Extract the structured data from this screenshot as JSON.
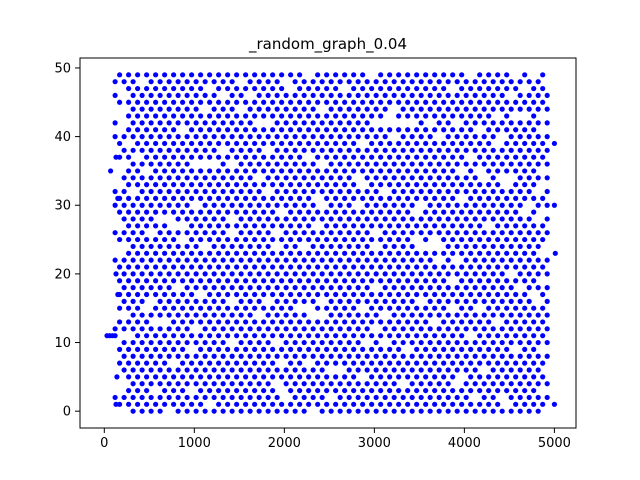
{
  "chart_data": {
    "type": "scatter",
    "title": "_random_graph_0.04",
    "xlabel": "",
    "ylabel": "",
    "xlim": [
      -270,
      5240
    ],
    "ylim": [
      -2.45,
      51.45
    ],
    "x_ticks": [
      0,
      1000,
      2000,
      3000,
      4000,
      5000
    ],
    "y_ticks": [
      0,
      10,
      20,
      30,
      40,
      50
    ],
    "marker_color": "#0000ff",
    "grid": false,
    "legend": "none",
    "series": [
      {
        "description_of_points": "Dense lattice of points: integer y from 0 to 49, x spaced about 50 apart from ~120 to ~4950",
        "x_start": 120,
        "x_step": 50,
        "x_end": 4950,
        "y_min": 0,
        "y_max": 49,
        "stragglers": [
          {
            "x": 30,
            "y": 11
          },
          {
            "x": 60,
            "y": 11
          },
          {
            "x": 90,
            "y": 11
          },
          {
            "x": 120,
            "y": 11
          },
          {
            "x": 70,
            "y": 35
          },
          {
            "x": 130,
            "y": 37
          },
          {
            "x": 150,
            "y": 31
          },
          {
            "x": 130,
            "y": 20
          },
          {
            "x": 150,
            "y": 17
          },
          {
            "x": 140,
            "y": 5
          },
          {
            "x": 130,
            "y": 1
          },
          {
            "x": 5000,
            "y": 39
          },
          {
            "x": 5000,
            "y": 30
          },
          {
            "x": 5010,
            "y": 23
          },
          {
            "x": 5000,
            "y": 1
          }
        ]
      }
    ]
  }
}
